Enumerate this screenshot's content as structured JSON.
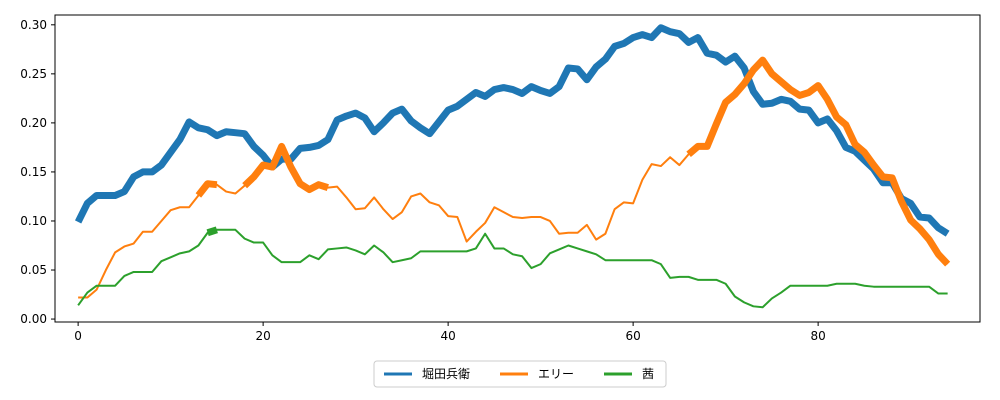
{
  "chart_data": {
    "type": "line",
    "title": "",
    "xlabel": "",
    "ylabel": "",
    "xlim": [
      -2.5,
      97.5
    ],
    "ylim": [
      -0.003,
      0.31
    ],
    "xticks": [
      0,
      20,
      40,
      60,
      80
    ],
    "xtick_labels": [
      "0",
      "20",
      "40",
      "60",
      "80"
    ],
    "yticks": [
      0.0,
      0.05,
      0.1,
      0.15,
      0.2,
      0.25,
      0.3
    ],
    "ytick_labels": [
      "0.00",
      "0.05",
      "0.10",
      "0.15",
      "0.20",
      "0.25",
      "0.30"
    ],
    "grid": false,
    "legend_position": "bottom-center",
    "series": [
      {
        "name": "堀田兵衛",
        "color": "#1f77b4",
        "bold": true,
        "x": [
          0,
          1,
          2,
          3,
          4,
          5,
          6,
          7,
          8,
          9,
          10,
          11,
          12,
          13,
          14,
          15,
          16,
          17,
          18,
          19,
          20,
          21,
          22,
          23,
          24,
          25,
          26,
          27,
          28,
          29,
          30,
          31,
          32,
          33,
          34,
          35,
          36,
          37,
          38,
          39,
          40,
          41,
          42,
          43,
          44,
          45,
          46,
          47,
          48,
          49,
          50,
          51,
          52,
          53,
          54,
          55,
          56,
          57,
          58,
          59,
          60,
          61,
          62,
          63,
          64,
          65,
          66,
          67,
          68,
          69,
          70,
          71,
          72,
          73,
          74,
          75,
          76,
          77,
          78,
          79,
          80,
          81,
          82,
          83,
          84,
          85,
          86,
          87,
          88,
          89,
          90,
          91,
          92,
          93,
          94
        ],
        "y": [
          0.099,
          0.118,
          0.126,
          0.126,
          0.126,
          0.13,
          0.145,
          0.15,
          0.15,
          0.157,
          0.17,
          0.183,
          0.201,
          0.195,
          0.193,
          0.187,
          0.191,
          0.19,
          0.189,
          0.176,
          0.167,
          0.155,
          0.163,
          0.163,
          0.174,
          0.175,
          0.177,
          0.183,
          0.203,
          0.207,
          0.21,
          0.205,
          0.191,
          0.2,
          0.21,
          0.214,
          0.202,
          0.195,
          0.189,
          0.201,
          0.213,
          0.217,
          0.224,
          0.231,
          0.227,
          0.234,
          0.236,
          0.234,
          0.23,
          0.237,
          0.233,
          0.23,
          0.237,
          0.256,
          0.255,
          0.244,
          0.257,
          0.265,
          0.278,
          0.281,
          0.287,
          0.29,
          0.287,
          0.297,
          0.293,
          0.291,
          0.282,
          0.287,
          0.271,
          0.269,
          0.262,
          0.268,
          0.256,
          0.232,
          0.219,
          0.22,
          0.224,
          0.222,
          0.214,
          0.213,
          0.2,
          0.204,
          0.192,
          0.175,
          0.171,
          0.162,
          0.153,
          0.139,
          0.139,
          0.123,
          0.118,
          0.104,
          0.103,
          0.093,
          0.087
        ]
      },
      {
        "name": "エリー",
        "color": "#ff7f0e",
        "bold": false,
        "x": [
          0,
          1,
          2,
          3,
          4,
          5,
          6,
          7,
          8,
          9,
          10,
          11,
          12,
          13,
          14,
          15,
          16,
          17,
          18,
          19,
          20,
          21,
          22,
          23,
          24,
          25,
          26,
          27,
          28,
          29,
          30,
          31,
          32,
          33,
          34,
          35,
          36,
          37,
          38,
          39,
          40,
          41,
          42,
          43,
          44,
          45,
          46,
          47,
          48,
          49,
          50,
          51,
          52,
          53,
          54,
          55,
          56,
          57,
          58,
          59,
          60,
          61,
          62,
          63,
          64,
          65,
          66,
          67,
          68,
          69,
          70,
          71,
          72,
          73,
          74,
          75,
          76,
          77,
          78,
          79,
          80,
          81,
          82,
          83,
          84,
          85,
          86,
          87,
          88,
          89,
          90,
          91,
          92,
          93,
          94
        ],
        "y": [
          0.022,
          0.022,
          0.03,
          0.05,
          0.068,
          0.074,
          0.077,
          0.089,
          0.089,
          0.1,
          0.111,
          0.114,
          0.114,
          0.126,
          0.138,
          0.137,
          0.13,
          0.128,
          0.136,
          0.145,
          0.157,
          0.155,
          0.176,
          0.155,
          0.138,
          0.132,
          0.137,
          0.134,
          0.135,
          0.124,
          0.112,
          0.113,
          0.124,
          0.112,
          0.102,
          0.109,
          0.125,
          0.128,
          0.119,
          0.116,
          0.105,
          0.104,
          0.079,
          0.089,
          0.098,
          0.114,
          0.109,
          0.104,
          0.103,
          0.104,
          0.104,
          0.1,
          0.087,
          0.088,
          0.088,
          0.096,
          0.081,
          0.087,
          0.112,
          0.119,
          0.118,
          0.142,
          0.158,
          0.156,
          0.165,
          0.157,
          0.168,
          0.176,
          0.176,
          0.199,
          0.221,
          0.229,
          0.24,
          0.254,
          0.264,
          0.25,
          0.242,
          0.234,
          0.228,
          0.231,
          0.238,
          0.224,
          0.206,
          0.198,
          0.178,
          0.17,
          0.157,
          0.145,
          0.144,
          0.12,
          0.101,
          0.092,
          0.081,
          0.066,
          0.056
        ],
        "bold_segments": [
          [
            13,
            15
          ],
          [
            18,
            27
          ],
          [
            66,
            94
          ]
        ]
      },
      {
        "name": "茜",
        "color": "#2ca02c",
        "bold": false,
        "x": [
          0,
          1,
          2,
          3,
          4,
          5,
          6,
          7,
          8,
          9,
          10,
          11,
          12,
          13,
          14,
          15,
          16,
          17,
          18,
          19,
          20,
          21,
          22,
          23,
          24,
          25,
          26,
          27,
          28,
          29,
          30,
          31,
          32,
          33,
          34,
          35,
          36,
          37,
          38,
          39,
          40,
          41,
          42,
          43,
          44,
          45,
          46,
          47,
          48,
          49,
          50,
          51,
          52,
          53,
          54,
          55,
          56,
          57,
          58,
          59,
          60,
          61,
          62,
          63,
          64,
          65,
          66,
          67,
          68,
          69,
          70,
          71,
          72,
          73,
          74,
          75,
          76,
          77,
          78,
          79,
          80,
          81,
          82,
          83,
          84,
          85,
          86,
          87,
          88,
          89,
          90,
          91,
          92,
          93,
          94
        ],
        "y": [
          0.014,
          0.027,
          0.034,
          0.034,
          0.034,
          0.044,
          0.048,
          0.048,
          0.048,
          0.059,
          0.063,
          0.067,
          0.069,
          0.075,
          0.088,
          0.091,
          0.091,
          0.091,
          0.082,
          0.078,
          0.078,
          0.065,
          0.058,
          0.058,
          0.058,
          0.065,
          0.061,
          0.071,
          0.072,
          0.073,
          0.07,
          0.066,
          0.075,
          0.068,
          0.058,
          0.06,
          0.062,
          0.069,
          0.069,
          0.069,
          0.069,
          0.069,
          0.069,
          0.072,
          0.087,
          0.072,
          0.072,
          0.066,
          0.064,
          0.052,
          0.056,
          0.067,
          0.071,
          0.075,
          0.072,
          0.069,
          0.066,
          0.06,
          0.06,
          0.06,
          0.06,
          0.06,
          0.06,
          0.056,
          0.042,
          0.043,
          0.043,
          0.04,
          0.04,
          0.04,
          0.036,
          0.023,
          0.017,
          0.013,
          0.012,
          0.021,
          0.027,
          0.034,
          0.034,
          0.034,
          0.034,
          0.034,
          0.036,
          0.036,
          0.036,
          0.034,
          0.033,
          0.033,
          0.033,
          0.033,
          0.033,
          0.033,
          0.033,
          0.026,
          0.026
        ],
        "bold_segments": [
          [
            14,
            15
          ]
        ]
      }
    ]
  }
}
